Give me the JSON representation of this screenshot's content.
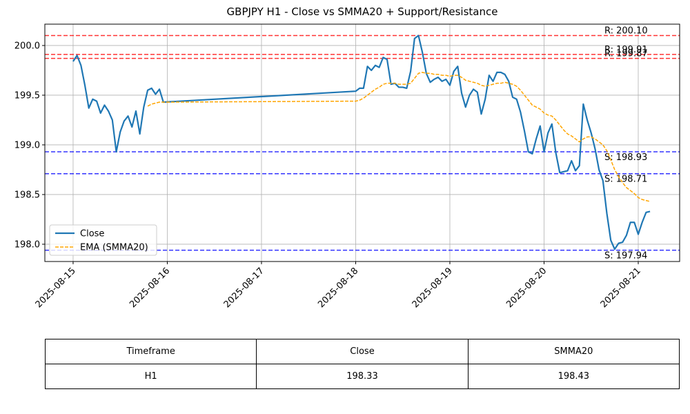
{
  "chart_data": {
    "type": "line",
    "title": "GBPJPY H1 - Close vs SMMA20 + Support/Resistance",
    "x": [
      "2025-08-15 00:00",
      "2025-08-15 01:00",
      "2025-08-15 02:00",
      "2025-08-15 03:00",
      "2025-08-15 04:00",
      "2025-08-15 05:00",
      "2025-08-15 06:00",
      "2025-08-15 07:00",
      "2025-08-15 08:00",
      "2025-08-15 09:00",
      "2025-08-15 10:00",
      "2025-08-15 11:00",
      "2025-08-15 12:00",
      "2025-08-15 13:00",
      "2025-08-15 14:00",
      "2025-08-15 15:00",
      "2025-08-15 16:00",
      "2025-08-15 17:00",
      "2025-08-15 18:00",
      "2025-08-15 19:00",
      "2025-08-15 20:00",
      "2025-08-15 21:00",
      "2025-08-15 22:00",
      "2025-08-15 23:00",
      "2025-08-18 00:00",
      "2025-08-18 01:00",
      "2025-08-18 02:00",
      "2025-08-18 03:00",
      "2025-08-18 04:00",
      "2025-08-18 05:00",
      "2025-08-18 06:00",
      "2025-08-18 07:00",
      "2025-08-18 08:00",
      "2025-08-18 09:00",
      "2025-08-18 10:00",
      "2025-08-18 11:00",
      "2025-08-18 12:00",
      "2025-08-18 13:00",
      "2025-08-18 14:00",
      "2025-08-18 15:00",
      "2025-08-18 16:00",
      "2025-08-18 17:00",
      "2025-08-18 18:00",
      "2025-08-18 19:00",
      "2025-08-18 20:00",
      "2025-08-18 21:00",
      "2025-08-18 22:00",
      "2025-08-18 23:00",
      "2025-08-19 00:00",
      "2025-08-19 01:00",
      "2025-08-19 02:00",
      "2025-08-19 03:00",
      "2025-08-19 04:00",
      "2025-08-19 05:00",
      "2025-08-19 06:00",
      "2025-08-19 07:00",
      "2025-08-19 08:00",
      "2025-08-19 09:00",
      "2025-08-19 10:00",
      "2025-08-19 11:00",
      "2025-08-19 12:00",
      "2025-08-19 13:00",
      "2025-08-19 14:00",
      "2025-08-19 15:00",
      "2025-08-19 16:00",
      "2025-08-19 17:00",
      "2025-08-19 18:00",
      "2025-08-19 19:00",
      "2025-08-19 20:00",
      "2025-08-19 21:00",
      "2025-08-19 22:00",
      "2025-08-19 23:00",
      "2025-08-20 00:00",
      "2025-08-20 01:00",
      "2025-08-20 02:00",
      "2025-08-20 03:00",
      "2025-08-20 04:00",
      "2025-08-20 05:00",
      "2025-08-20 06:00",
      "2025-08-20 07:00",
      "2025-08-20 08:00",
      "2025-08-20 09:00",
      "2025-08-20 10:00",
      "2025-08-20 11:00",
      "2025-08-20 12:00",
      "2025-08-20 13:00",
      "2025-08-20 14:00",
      "2025-08-20 15:00",
      "2025-08-20 16:00",
      "2025-08-20 17:00",
      "2025-08-20 18:00",
      "2025-08-20 19:00",
      "2025-08-20 20:00",
      "2025-08-20 21:00",
      "2025-08-20 22:00",
      "2025-08-20 23:00",
      "2025-08-21 00:00",
      "2025-08-21 01:00",
      "2025-08-21 02:00",
      "2025-08-21 03:00"
    ],
    "series": [
      {
        "name": "Close",
        "color": "#1f77b4",
        "style": "solid",
        "values": [
          199.84,
          199.9,
          199.8,
          199.6,
          199.37,
          199.46,
          199.44,
          199.32,
          199.4,
          199.34,
          199.25,
          198.93,
          199.13,
          199.24,
          199.29,
          199.18,
          199.34,
          199.11,
          199.38,
          199.55,
          199.57,
          199.51,
          199.56,
          199.43,
          199.54,
          199.57,
          199.57,
          199.79,
          199.75,
          199.8,
          199.78,
          199.88,
          199.86,
          199.61,
          199.62,
          199.58,
          199.58,
          199.57,
          199.74,
          200.07,
          200.1,
          199.93,
          199.72,
          199.63,
          199.66,
          199.68,
          199.64,
          199.66,
          199.6,
          199.74,
          199.79,
          199.52,
          199.38,
          199.5,
          199.56,
          199.53,
          199.31,
          199.46,
          199.7,
          199.64,
          199.73,
          199.73,
          199.71,
          199.64,
          199.48,
          199.46,
          199.33,
          199.14,
          198.93,
          198.91,
          199.06,
          199.19,
          198.93,
          199.12,
          199.21,
          198.92,
          198.72,
          198.73,
          198.74,
          198.84,
          198.74,
          198.79,
          199.41,
          199.25,
          199.12,
          198.96,
          198.75,
          198.64,
          198.31,
          198.04,
          197.95,
          198.01,
          198.02,
          198.09,
          198.22,
          198.22,
          198.1,
          198.22,
          198.32,
          198.33
        ]
      },
      {
        "name": "EMA (SMMA20)",
        "color": "orange",
        "style": "dashed",
        "values": [
          null,
          null,
          null,
          null,
          null,
          null,
          null,
          null,
          null,
          null,
          null,
          null,
          null,
          null,
          null,
          null,
          null,
          null,
          null,
          199.39,
          199.41,
          199.42,
          199.43,
          199.43,
          199.44,
          199.45,
          199.47,
          199.5,
          199.53,
          199.56,
          199.58,
          199.61,
          199.62,
          199.62,
          199.62,
          199.61,
          199.61,
          199.61,
          199.62,
          199.67,
          199.72,
          199.73,
          199.72,
          199.72,
          199.71,
          199.71,
          199.7,
          199.7,
          199.69,
          199.7,
          199.7,
          199.68,
          199.65,
          199.64,
          199.63,
          199.62,
          199.6,
          199.59,
          199.6,
          199.61,
          199.62,
          199.62,
          199.63,
          199.62,
          199.61,
          199.59,
          199.55,
          199.5,
          199.45,
          199.4,
          199.38,
          199.36,
          199.32,
          199.3,
          199.29,
          199.25,
          199.2,
          199.15,
          199.11,
          199.09,
          199.06,
          199.03,
          199.06,
          199.08,
          199.08,
          199.06,
          199.03,
          199.0,
          198.94,
          198.85,
          198.75,
          198.68,
          198.62,
          198.57,
          198.54,
          198.51,
          198.47,
          198.45,
          198.44,
          198.43
        ]
      }
    ],
    "resistance_color": "red",
    "support_color": "blue",
    "resistance": [
      {
        "value": 200.1,
        "label": "R: 200.10"
      },
      {
        "value": 199.91,
        "label": "R: 199.91"
      },
      {
        "value": 199.87,
        "label": "R: 199.87"
      }
    ],
    "support": [
      {
        "value": 198.93,
        "label": "S: 198.93"
      },
      {
        "value": 198.71,
        "label": "S: 198.71"
      },
      {
        "value": 197.94,
        "label": "S: 197.94"
      }
    ],
    "xlim": [
      "2025-08-14 16:48",
      "2025-08-21 10:33"
    ],
    "xticks": [
      "2025-08-15",
      "2025-08-16",
      "2025-08-17",
      "2025-08-18",
      "2025-08-19",
      "2025-08-20",
      "2025-08-21"
    ],
    "ylim": [
      197.826,
      200.215
    ],
    "yticks": [
      {
        "value": 198.0,
        "label": "198.0"
      },
      {
        "value": 198.5,
        "label": "198.5"
      },
      {
        "value": 199.0,
        "label": "199.0"
      },
      {
        "value": 199.5,
        "label": "199.5"
      },
      {
        "value": 200.0,
        "label": "200.0"
      }
    ],
    "grid": true,
    "legend": "lower left"
  },
  "table": {
    "header": [
      "Timeframe",
      "Close",
      "SMMA20"
    ],
    "rows": [
      [
        "H1",
        "198.33",
        "198.43"
      ]
    ]
  }
}
